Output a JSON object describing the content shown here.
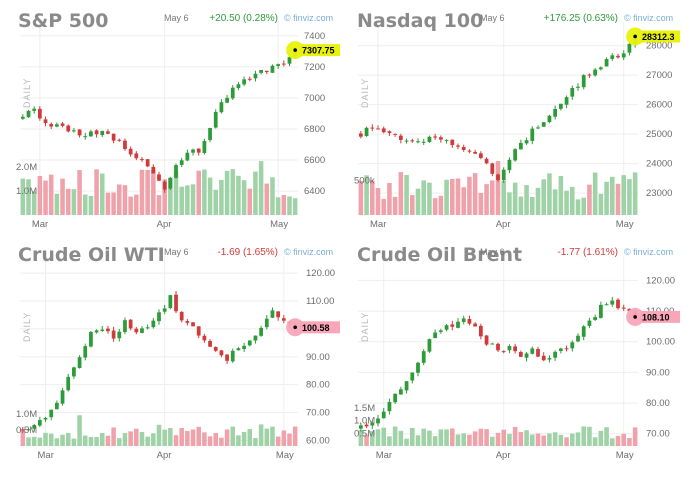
{
  "colors": {
    "up": "#2e9b3a",
    "down": "#d13a3a",
    "vol_up": "#9fd3a7",
    "vol_down": "#efa2aa",
    "last_up": "#e9f20c",
    "last_down": "#f8a6b8",
    "grid": "#eeeeee"
  },
  "source_label": "finviz.com",
  "side_label": "DAILY",
  "chart_data": [
    {
      "type": "candlestick",
      "title": "S&P 500",
      "date": "May 6",
      "change": "+20.50 (0.28%)",
      "direction": "up",
      "last": "7307.75",
      "last_value": 7307.75,
      "ylim": [
        6330,
        7450
      ],
      "yticks": [
        6400,
        6600,
        6800,
        7000,
        7200,
        7400
      ],
      "ytick_labels": [
        "6400",
        "6600",
        "6800",
        "7000",
        "7200",
        "7400"
      ],
      "vol_max": 2.3,
      "vol_ticks": [
        1.0,
        2.0
      ],
      "vol_tick_labels": [
        "1.0M",
        "2.0M"
      ],
      "xticks": [
        {
          "label": "Mar",
          "i": 3
        },
        {
          "label": "Apr",
          "i": 25
        },
        {
          "label": "May",
          "i": 45
        }
      ],
      "n": 49,
      "anchors": [
        [
          0,
          6870
        ],
        [
          2,
          6940
        ],
        [
          4,
          6830
        ],
        [
          8,
          6800
        ],
        [
          11,
          6760
        ],
        [
          14,
          6790
        ],
        [
          17,
          6720
        ],
        [
          20,
          6620
        ],
        [
          23,
          6510
        ],
        [
          25,
          6420
        ],
        [
          27,
          6560
        ],
        [
          29,
          6640
        ],
        [
          31,
          6660
        ],
        [
          33,
          6820
        ],
        [
          35,
          6960
        ],
        [
          37,
          7060
        ],
        [
          39,
          7110
        ],
        [
          41,
          7140
        ],
        [
          43,
          7180
        ],
        [
          45,
          7200
        ],
        [
          47,
          7250
        ],
        [
          48,
          7307
        ]
      ],
      "vol_base": 1.4
    },
    {
      "type": "candlestick",
      "title": "Nasdaq 100",
      "date": "May 6",
      "change": "+176.25 (0.63%)",
      "direction": "up",
      "last": "28312.3",
      "last_value": 28312.3,
      "ylim": [
        22700,
        28600
      ],
      "yticks": [
        23000,
        24000,
        25000,
        26000,
        27000,
        28000
      ],
      "ytick_labels": [
        "23000",
        "24000",
        "25000",
        "26000",
        "27000",
        "28000"
      ],
      "vol_max": 0.8,
      "vol_ticks": [
        0.5
      ],
      "vol_tick_labels": [
        "500k"
      ],
      "xticks": [
        {
          "label": "Mar",
          "i": 3
        },
        {
          "label": "Apr",
          "i": 25
        },
        {
          "label": "May",
          "i": 46
        }
      ],
      "n": 49,
      "anchors": [
        [
          0,
          25000
        ],
        [
          2,
          25250
        ],
        [
          4,
          25100
        ],
        [
          7,
          24900
        ],
        [
          10,
          24700
        ],
        [
          13,
          24900
        ],
        [
          16,
          24700
        ],
        [
          19,
          24400
        ],
        [
          22,
          24000
        ],
        [
          24,
          23500
        ],
        [
          26,
          24200
        ],
        [
          28,
          24600
        ],
        [
          30,
          25100
        ],
        [
          33,
          25700
        ],
        [
          36,
          26300
        ],
        [
          39,
          26900
        ],
        [
          42,
          27300
        ],
        [
          44,
          27600
        ],
        [
          46,
          27800
        ],
        [
          48,
          28312
        ]
      ],
      "vol_base": 0.45
    },
    {
      "type": "candlestick",
      "title": "Crude Oil WTI",
      "date": "May 6",
      "change": "-1.69 (1.65%)",
      "direction": "down",
      "last": "100.58",
      "last_value": 100.58,
      "ylim": [
        58,
        124
      ],
      "yticks": [
        60,
        70,
        80,
        90,
        100,
        110,
        120
      ],
      "ytick_labels": [
        "60.00",
        "70.00",
        "80.00",
        "90.00",
        "100.00",
        "110.00",
        "120.00"
      ],
      "vol_max": 1.5,
      "vol_ticks": [
        0.5,
        1.0
      ],
      "vol_tick_labels": [
        "0.5M",
        "1.0M"
      ],
      "xticks": [
        {
          "label": "Mar",
          "i": 4
        },
        {
          "label": "Apr",
          "i": 25
        },
        {
          "label": "May",
          "i": 46
        }
      ],
      "n": 49,
      "anchors": [
        [
          0,
          64
        ],
        [
          2,
          66
        ],
        [
          4,
          67
        ],
        [
          6,
          74
        ],
        [
          8,
          83
        ],
        [
          10,
          90
        ],
        [
          12,
          98
        ],
        [
          14,
          100
        ],
        [
          16,
          97
        ],
        [
          18,
          103
        ],
        [
          20,
          99
        ],
        [
          22,
          101
        ],
        [
          24,
          105
        ],
        [
          26,
          111
        ],
        [
          28,
          103
        ],
        [
          30,
          100
        ],
        [
          32,
          97
        ],
        [
          34,
          92
        ],
        [
          36,
          89
        ],
        [
          38,
          93
        ],
        [
          40,
          96
        ],
        [
          42,
          100
        ],
        [
          44,
          106
        ],
        [
          46,
          104
        ],
        [
          48,
          100.58
        ]
      ],
      "vol_base": 0.45
    },
    {
      "type": "candlestick",
      "title": "Crude Oil Brent",
      "date": "May 6",
      "change": "-1.77 (1.61%)",
      "direction": "down",
      "last": "108.10",
      "last_value": 108.1,
      "ylim": [
        66,
        126
      ],
      "yticks": [
        70,
        80,
        90,
        100,
        110,
        120
      ],
      "ytick_labels": [
        "70.00",
        "80.00",
        "90.00",
        "100.00",
        "110.00",
        "120.00"
      ],
      "vol_max": 2.0,
      "vol_ticks": [
        0.5,
        1.0,
        1.5
      ],
      "vol_tick_labels": [
        "0.5M",
        "1.0M",
        "1.5M"
      ],
      "xticks": [
        {
          "label": "Mar",
          "i": 4
        },
        {
          "label": "Apr",
          "i": 25
        },
        {
          "label": "May",
          "i": 46
        }
      ],
      "n": 49,
      "anchors": [
        [
          0,
          72
        ],
        [
          2,
          74
        ],
        [
          4,
          77
        ],
        [
          6,
          82
        ],
        [
          8,
          87
        ],
        [
          10,
          94
        ],
        [
          12,
          100
        ],
        [
          14,
          104
        ],
        [
          16,
          105
        ],
        [
          18,
          107
        ],
        [
          20,
          104
        ],
        [
          22,
          100
        ],
        [
          24,
          97
        ],
        [
          26,
          98
        ],
        [
          28,
          96
        ],
        [
          30,
          97
        ],
        [
          32,
          95
        ],
        [
          34,
          96
        ],
        [
          36,
          98
        ],
        [
          38,
          103
        ],
        [
          40,
          107
        ],
        [
          42,
          111
        ],
        [
          44,
          113
        ],
        [
          46,
          110
        ],
        [
          48,
          108.1
        ]
      ],
      "vol_base": 0.55
    }
  ]
}
